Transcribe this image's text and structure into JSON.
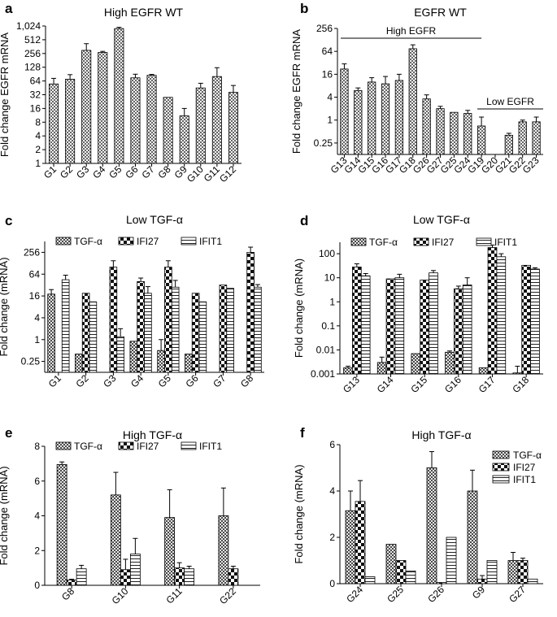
{
  "chart_data": [
    {
      "panel": "a",
      "type": "bar",
      "scale": "log2",
      "title": "High EGFR WT",
      "ylabel": "Fold change EGFR mRNA",
      "ylim": [
        1,
        1024
      ],
      "yticks": [
        1,
        2,
        4,
        8,
        16,
        32,
        64,
        128,
        256,
        512,
        1024
      ],
      "ytick_labels": [
        "1",
        "2",
        "4",
        "8",
        "16",
        "32",
        "64",
        "128",
        "256",
        "512",
        "1,024"
      ],
      "categories": [
        "G1",
        "G2",
        "G3",
        "G4",
        "G5",
        "G6",
        "G7",
        "G8",
        "G9",
        "G10",
        "G11",
        "G12"
      ],
      "series": [
        {
          "name": "EGFR",
          "values": [
            55,
            70,
            300,
            270,
            900,
            75,
            85,
            28,
            11,
            45,
            80,
            36
          ],
          "errors": [
            18,
            18,
            120,
            15,
            60,
            15,
            4,
            0,
            5,
            12,
            45,
            15
          ]
        }
      ]
    },
    {
      "panel": "b",
      "type": "bar",
      "scale": "log2",
      "title": "EGFR WT",
      "ylabel": "Fold change EGFR mRNA",
      "ylim": [
        0.125,
        256
      ],
      "yticks": [
        0.25,
        1,
        4,
        16,
        64,
        256
      ],
      "ytick_labels": [
        "0.25",
        "1",
        "4",
        "16",
        "64",
        "256"
      ],
      "categories": [
        "G13",
        "G14",
        "G15",
        "G16",
        "G17",
        "G18",
        "G26",
        "G27",
        "G25",
        "G24",
        "G19",
        "G20",
        "G21",
        "G22",
        "G23"
      ],
      "annotations": [
        {
          "text": "High EGFR",
          "from": "G13",
          "to": "G19"
        },
        {
          "text": "Low EGFR",
          "from": "G19",
          "to": "G23"
        }
      ],
      "series": [
        {
          "name": "EGFR",
          "values": [
            22,
            6,
            10,
            9,
            11,
            75,
            3.6,
            2.0,
            1.6,
            1.5,
            0.7,
            0,
            0.4,
            0.9,
            0.9
          ],
          "errors": [
            8,
            1,
            3,
            5,
            5,
            20,
            1,
            0.3,
            0,
            0.3,
            0.5,
            0,
            0.05,
            0.1,
            0.3
          ]
        }
      ]
    },
    {
      "panel": "c",
      "type": "bar",
      "scale": "log2",
      "title": "Low TGF-α",
      "ylabel": "Fold change (mRNA)",
      "ylim": [
        0.125,
        512
      ],
      "yticks": [
        0.25,
        1,
        4,
        16,
        64,
        256
      ],
      "ytick_labels": [
        "0.25",
        "1",
        "4",
        "16",
        "64",
        "256"
      ],
      "categories": [
        "G1",
        "G2",
        "G3",
        "G4",
        "G5",
        "G6",
        "G7",
        "G8"
      ],
      "series": [
        {
          "name": "TGF-α",
          "values": [
            18,
            0.4,
            0,
            0.9,
            0.5,
            0.4,
            0,
            0
          ],
          "errors": [
            6,
            0,
            0,
            0,
            0.5,
            0,
            0,
            0
          ]
        },
        {
          "name": "IFI27",
          "values": [
            0,
            19,
            100,
            40,
            100,
            19,
            32,
            256
          ],
          "errors": [
            0,
            0,
            50,
            10,
            50,
            0,
            0,
            100
          ]
        },
        {
          "name": "IFIT1",
          "values": [
            45,
            11,
            1.2,
            19,
            28,
            11,
            26,
            28
          ],
          "errors": [
            15,
            0,
            0.8,
            10,
            15,
            0,
            0,
            5
          ]
        }
      ]
    },
    {
      "panel": "d",
      "type": "bar",
      "scale": "log10",
      "title": "Low TGF-α",
      "ylabel": "Fold change (mRNA)",
      "ylim": [
        0.001,
        300
      ],
      "yticks": [
        0.001,
        0.01,
        0.1,
        1,
        10,
        100
      ],
      "ytick_labels": [
        "0.001",
        "0.01",
        "0.1",
        "1",
        "10",
        "100"
      ],
      "categories": [
        "G13",
        "G14",
        "G15",
        "G16",
        "G17",
        "G18"
      ],
      "series": [
        {
          "name": "TGF-α",
          "values": [
            0.0018,
            0.003,
            0.007,
            0.008,
            0.0018,
            0.0011
          ],
          "errors": [
            0.0003,
            0.002,
            0,
            0.001,
            0,
            0.001
          ]
        },
        {
          "name": "IFI27",
          "values": [
            28,
            9,
            8,
            3.5,
            180,
            33
          ],
          "errors": [
            10,
            0,
            0,
            1,
            50,
            0
          ]
        },
        {
          "name": "IFIT1",
          "values": [
            12,
            10,
            16,
            5,
            75,
            23
          ],
          "errors": [
            3,
            4,
            4,
            5,
            25,
            3
          ]
        }
      ]
    },
    {
      "panel": "e",
      "type": "bar",
      "scale": "linear",
      "title": "High TGF-α",
      "ylabel": "Fold change (mRNA)",
      "ylim": [
        0,
        8
      ],
      "yticks": [
        0,
        2,
        4,
        6,
        8
      ],
      "ytick_labels": [
        "0",
        "2",
        "4",
        "6",
        "8"
      ],
      "categories": [
        "G8",
        "G10",
        "G11",
        "G22"
      ],
      "series": [
        {
          "name": "TGF-α",
          "values": [
            6.95,
            5.2,
            3.9,
            4.0
          ],
          "errors": [
            0.15,
            1.3,
            1.6,
            1.6
          ]
        },
        {
          "name": "IFI27",
          "values": [
            0.3,
            0.9,
            1.0,
            0.95
          ],
          "errors": [
            0.05,
            0.6,
            0.3,
            0.15
          ]
        },
        {
          "name": "IFIT1",
          "values": [
            0.95,
            1.8,
            0.95,
            0
          ],
          "errors": [
            0.2,
            0.9,
            0.15,
            0
          ]
        }
      ]
    },
    {
      "panel": "f",
      "type": "bar",
      "scale": "linear",
      "title": "High TGF-α",
      "ylabel": "Fold change (mRNA)",
      "ylim": [
        0,
        6
      ],
      "yticks": [
        0,
        2,
        4,
        6
      ],
      "ytick_labels": [
        "0",
        "2",
        "4",
        "6"
      ],
      "legend_position": "top-right",
      "categories": [
        "G24",
        "G25",
        "G26",
        "G9",
        "G27"
      ],
      "series": [
        {
          "name": "TGF-α",
          "values": [
            3.15,
            1.7,
            5.0,
            4.0,
            1.0
          ],
          "errors": [
            0.85,
            0,
            0.7,
            0.9,
            0.35
          ]
        },
        {
          "name": "IFI27",
          "values": [
            3.55,
            1.0,
            0.05,
            0.2,
            1.0
          ],
          "errors": [
            0.9,
            0,
            0,
            0.15,
            0.1
          ]
        },
        {
          "name": "IFIT1",
          "values": [
            0.3,
            0.55,
            2.0,
            1.0,
            0.2
          ],
          "errors": [
            0,
            0,
            0,
            0,
            0
          ]
        }
      ]
    }
  ]
}
